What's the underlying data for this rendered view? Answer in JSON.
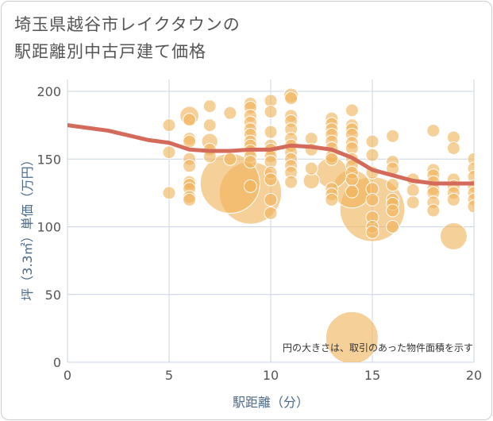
{
  "title_line1": "埼玉県越谷市レイクタウンの",
  "title_line2": "駅距離別中古戸建て価格",
  "chart_data": {
    "type": "scatter",
    "title": "埼玉県越谷市レイクタウンの駅距離別中古戸建て価格",
    "xlabel": "駅距離（分）",
    "ylabel": "坪（3.3㎡）単価（万円）",
    "xlim": [
      0,
      20
    ],
    "ylim": [
      0,
      200
    ],
    "xticks": [
      0,
      5,
      10,
      15,
      20
    ],
    "yticks": [
      0,
      50,
      100,
      150,
      200
    ],
    "grid": true,
    "note": "円の大きさは、取引のあった物件面積を示す",
    "colors": {
      "bubble": "#F0B35A",
      "trend": "#D46A5A",
      "grid": "#c8d4e3"
    },
    "bubbles": [
      [
        5,
        175,
        1
      ],
      [
        5,
        155,
        1
      ],
      [
        5,
        125,
        1
      ],
      [
        6,
        182,
        2.2
      ],
      [
        6,
        179,
        1
      ],
      [
        6,
        165,
        1
      ],
      [
        6,
        163,
        1
      ],
      [
        6,
        150,
        1
      ],
      [
        6,
        145,
        1
      ],
      [
        6,
        133,
        1
      ],
      [
        6,
        131,
        1
      ],
      [
        6,
        128,
        1
      ],
      [
        6,
        122,
        1
      ],
      [
        6,
        120,
        1
      ],
      [
        7,
        189,
        1
      ],
      [
        7,
        175,
        1
      ],
      [
        7,
        163,
        1.6
      ],
      [
        7,
        157,
        1
      ],
      [
        7,
        152,
        1
      ],
      [
        8,
        184,
        1
      ],
      [
        8,
        150,
        1
      ],
      [
        8,
        132,
        22
      ],
      [
        9,
        191,
        1
      ],
      [
        9,
        188,
        1
      ],
      [
        9,
        182,
        1
      ],
      [
        9,
        177,
        1
      ],
      [
        9,
        172,
        1
      ],
      [
        9,
        168,
        1
      ],
      [
        9,
        163,
        1
      ],
      [
        9,
        160,
        1
      ],
      [
        9,
        156,
        1
      ],
      [
        9,
        152,
        1
      ],
      [
        9,
        148,
        1
      ],
      [
        9,
        125,
        24
      ],
      [
        9,
        130,
        1
      ],
      [
        10,
        193,
        1
      ],
      [
        10,
        185,
        1
      ],
      [
        10,
        170,
        1
      ],
      [
        10,
        160,
        1
      ],
      [
        10,
        157,
        1
      ],
      [
        10,
        152,
        1
      ],
      [
        10,
        148,
        1
      ],
      [
        10,
        140,
        1
      ],
      [
        10,
        135,
        1
      ],
      [
        10,
        120,
        1
      ],
      [
        10,
        110,
        1
      ],
      [
        11,
        197,
        1.3
      ],
      [
        11,
        195,
        1
      ],
      [
        11,
        182,
        1
      ],
      [
        11,
        178,
        1
      ],
      [
        11,
        172,
        1
      ],
      [
        11,
        165,
        1
      ],
      [
        11,
        160,
        1
      ],
      [
        11,
        155,
        1
      ],
      [
        11,
        150,
        1
      ],
      [
        11,
        145,
        1
      ],
      [
        11,
        140,
        1
      ],
      [
        11,
        133,
        1
      ],
      [
        12,
        165,
        1
      ],
      [
        12,
        157,
        1
      ],
      [
        12,
        143,
        1
      ],
      [
        12,
        134,
        1.6
      ],
      [
        13,
        180,
        1
      ],
      [
        13,
        176,
        1
      ],
      [
        13,
        172,
        1
      ],
      [
        13,
        168,
        1
      ],
      [
        13,
        163,
        1
      ],
      [
        13,
        158,
        1
      ],
      [
        13,
        152,
        1
      ],
      [
        13,
        150,
        1
      ],
      [
        13,
        140,
        6
      ],
      [
        13,
        128,
        1
      ],
      [
        13,
        124,
        1
      ],
      [
        13,
        120,
        1
      ],
      [
        14,
        186,
        1
      ],
      [
        14,
        175,
        1
      ],
      [
        14,
        172,
        1
      ],
      [
        14,
        168,
        1
      ],
      [
        14,
        162,
        1
      ],
      [
        14,
        158,
        1
      ],
      [
        14,
        150,
        1
      ],
      [
        14,
        145,
        1
      ],
      [
        14,
        140,
        1
      ],
      [
        14,
        135,
        1
      ],
      [
        14,
        128,
        9
      ],
      [
        14,
        126,
        1
      ],
      [
        14,
        18,
        17
      ],
      [
        15,
        163,
        1
      ],
      [
        15,
        153,
        1
      ],
      [
        15,
        140,
        1
      ],
      [
        15,
        128,
        1
      ],
      [
        15,
        120,
        1
      ],
      [
        15,
        113,
        26
      ],
      [
        15,
        107,
        1
      ],
      [
        15,
        100,
        1
      ],
      [
        15,
        96,
        1
      ],
      [
        16,
        167,
        1
      ],
      [
        16,
        148,
        1
      ],
      [
        16,
        143,
        1
      ],
      [
        16,
        131,
        1
      ],
      [
        16,
        120,
        1
      ],
      [
        16,
        117,
        1
      ],
      [
        16,
        112,
        1
      ],
      [
        16,
        100,
        1
      ],
      [
        17,
        135,
        1
      ],
      [
        17,
        127,
        1
      ],
      [
        17,
        118,
        1
      ],
      [
        18,
        171,
        1
      ],
      [
        18,
        142,
        1
      ],
      [
        18,
        138,
        1
      ],
      [
        18,
        133,
        1
      ],
      [
        18,
        128,
        1
      ],
      [
        18,
        125,
        1
      ],
      [
        18,
        118,
        1
      ],
      [
        18,
        112,
        1
      ],
      [
        19,
        166,
        1
      ],
      [
        19,
        158,
        1
      ],
      [
        19,
        135,
        1
      ],
      [
        19,
        130,
        1
      ],
      [
        19,
        125,
        1
      ],
      [
        19,
        120,
        1
      ],
      [
        19,
        93,
        4.5
      ],
      [
        20,
        150,
        1
      ],
      [
        20,
        143,
        1
      ],
      [
        20,
        137,
        1
      ],
      [
        20,
        130,
        1
      ],
      [
        20,
        125,
        1
      ],
      [
        20,
        120,
        1
      ],
      [
        20,
        115,
        1
      ]
    ],
    "trend": [
      [
        0,
        175
      ],
      [
        2,
        171
      ],
      [
        4,
        164
      ],
      [
        5,
        162
      ],
      [
        6,
        157
      ],
      [
        7,
        156
      ],
      [
        8,
        156
      ],
      [
        9,
        157
      ],
      [
        10,
        157
      ],
      [
        11,
        160
      ],
      [
        12,
        159
      ],
      [
        13,
        157
      ],
      [
        14,
        151
      ],
      [
        15,
        142
      ],
      [
        16,
        138
      ],
      [
        17,
        134
      ],
      [
        18,
        132
      ],
      [
        19,
        132
      ],
      [
        20,
        132
      ]
    ]
  }
}
